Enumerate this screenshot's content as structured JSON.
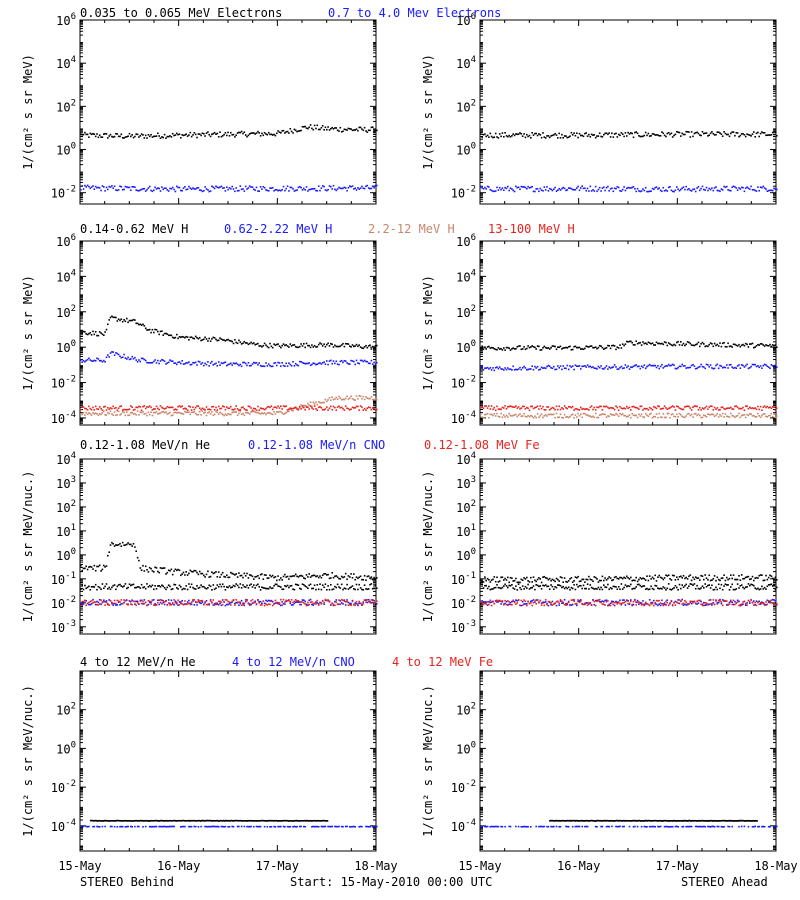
{
  "footer": {
    "left": "STEREO Behind",
    "center": "Start: 15-May-2010 00:00 UTC",
    "right": "STEREO Ahead"
  },
  "colors": {
    "black": "#000000",
    "blue": "#1a1aff",
    "tan": "#c9866b",
    "red": "#e8231d"
  },
  "chart_data": [
    {
      "type": "scatter",
      "row": 0,
      "headers": [
        {
          "text": "0.035 to 0.065 MeV Electrons",
          "color": "#000000"
        },
        {
          "text": "0.7 to 4.0 Mev Electrons",
          "color": "#1a1aff"
        }
      ],
      "ylabel": "1/(cm² s sr MeV)",
      "y_log": true,
      "ylim": [
        0.003,
        1000000
      ],
      "y_ticks": [
        {
          "value": 0.01,
          "mant": "10",
          "exp": "-2"
        },
        {
          "value": 1,
          "mant": "10",
          "exp": "0"
        },
        {
          "value": 100,
          "mant": "10",
          "exp": "2"
        },
        {
          "value": 10000,
          "mant": "10",
          "exp": "4"
        },
        {
          "value": 1000000,
          "mant": "10",
          "exp": "6"
        }
      ],
      "panels": [
        {
          "side": "STEREO Behind",
          "series": [
            {
              "color": "#000000",
              "x": [
                0,
                0.5,
                1,
                1.5,
                2,
                2.3,
                2.5,
                2.8,
                3
              ],
              "y": [
                5,
                4.5,
                5,
                5.5,
                6,
                12,
                10,
                9,
                9
              ]
            },
            {
              "color": "#1a1aff",
              "x": [
                0,
                1,
                2,
                3
              ],
              "y": [
                0.018,
                0.016,
                0.017,
                0.018
              ]
            }
          ]
        },
        {
          "side": "STEREO Ahead",
          "series": [
            {
              "color": "#000000",
              "x": [
                0,
                1,
                2,
                3
              ],
              "y": [
                5,
                5,
                5.5,
                5.5
              ]
            },
            {
              "color": "#1a1aff",
              "x": [
                0,
                1,
                2,
                3
              ],
              "y": [
                0.016,
                0.017,
                0.016,
                0.017
              ]
            }
          ]
        }
      ]
    },
    {
      "type": "scatter",
      "row": 1,
      "headers": [
        {
          "text": "0.14-0.62 MeV H",
          "color": "#000000"
        },
        {
          "text": "0.62-2.22 MeV H",
          "color": "#1a1aff"
        },
        {
          "text": "2.2-12 MeV H",
          "color": "#c9866b"
        },
        {
          "text": "13-100 MeV H",
          "color": "#e8231d"
        }
      ],
      "ylabel": "1/(cm² s sr MeV)",
      "y_log": true,
      "ylim": [
        4e-05,
        1000000
      ],
      "y_ticks": [
        {
          "value": 0.0001,
          "mant": "10",
          "exp": "-4"
        },
        {
          "value": 0.01,
          "mant": "10",
          "exp": "-2"
        },
        {
          "value": 1,
          "mant": "10",
          "exp": "0"
        },
        {
          "value": 100,
          "mant": "10",
          "exp": "2"
        },
        {
          "value": 10000,
          "mant": "10",
          "exp": "4"
        },
        {
          "value": 1000000,
          "mant": "10",
          "exp": "6"
        }
      ],
      "panels": [
        {
          "side": "STEREO Behind",
          "series": [
            {
              "color": "#000000",
              "x": [
                0,
                0.25,
                0.3,
                0.55,
                0.7,
                1,
                1.4,
                1.8,
                2,
                2.5,
                3
              ],
              "y": [
                8,
                6,
                50,
                30,
                10,
                4,
                3,
                1.5,
                1.3,
                1.5,
                1.1
              ]
            },
            {
              "color": "#1a1aff",
              "x": [
                0,
                0.25,
                0.3,
                0.6,
                1,
                1.5,
                2,
                2.5,
                3
              ],
              "y": [
                0.2,
                0.2,
                0.5,
                0.2,
                0.15,
                0.12,
                0.12,
                0.15,
                0.15
              ]
            },
            {
              "color": "#c9866b",
              "x": [
                0,
                1,
                2,
                2.3,
                2.6,
                3
              ],
              "y": [
                0.0002,
                0.0002,
                0.0002,
                0.0006,
                0.0015,
                0.0015
              ]
            },
            {
              "color": "#e8231d",
              "x": [
                0,
                1,
                2,
                3
              ],
              "y": [
                0.0004,
                0.0004,
                0.0004,
                0.0004
              ]
            }
          ]
        },
        {
          "side": "STEREO Ahead",
          "series": [
            {
              "color": "#000000",
              "x": [
                0,
                0.8,
                1.4,
                1.5,
                2,
                3
              ],
              "y": [
                1,
                1,
                1.1,
                2,
                1.7,
                1.3
              ]
            },
            {
              "color": "#1a1aff",
              "x": [
                0,
                1,
                2,
                3
              ],
              "y": [
                0.07,
                0.08,
                0.09,
                0.09
              ]
            },
            {
              "color": "#c9866b",
              "x": [
                0,
                1,
                2,
                3
              ],
              "y": [
                0.00015,
                0.00015,
                0.00015,
                0.00015
              ]
            },
            {
              "color": "#e8231d",
              "x": [
                0,
                1,
                2,
                3
              ],
              "y": [
                0.0004,
                0.0004,
                0.0004,
                0.0004
              ]
            }
          ]
        }
      ]
    },
    {
      "type": "scatter",
      "row": 2,
      "headers": [
        {
          "text": "0.12-1.08 MeV/n He",
          "color": "#000000"
        },
        {
          "text": "0.12-1.08 MeV/n CNO",
          "color": "#1a1aff"
        },
        {
          "text": "0.12-1.08 MeV Fe",
          "color": "#e8231d"
        }
      ],
      "ylabel": "1/(cm² s sr MeV/nuc.)",
      "y_log": true,
      "ylim": [
        0.0005,
        10000
      ],
      "y_ticks": [
        {
          "value": 0.001,
          "mant": "10",
          "exp": "-3"
        },
        {
          "value": 0.01,
          "mant": "10",
          "exp": "-2"
        },
        {
          "value": 0.1,
          "mant": "10",
          "exp": "-1"
        },
        {
          "value": 1,
          "mant": "10",
          "exp": "0"
        },
        {
          "value": 10,
          "mant": "10",
          "exp": "1"
        },
        {
          "value": 100,
          "mant": "10",
          "exp": "2"
        },
        {
          "value": 1000,
          "mant": "10",
          "exp": "3"
        },
        {
          "value": 10000,
          "mant": "10",
          "exp": "4"
        }
      ],
      "panels": [
        {
          "side": "STEREO Behind",
          "series": [
            {
              "color": "#000000",
              "x": [
                0,
                0.25,
                0.3,
                0.55,
                0.6,
                1,
                1.5,
                2,
                2.5,
                3
              ],
              "y": [
                0.3,
                0.3,
                3,
                3,
                0.3,
                0.2,
                0.15,
                0.12,
                0.15,
                0.12
              ]
            },
            {
              "color": "#000000",
              "x": [
                0,
                3
              ],
              "y": [
                0.05,
                0.05
              ]
            },
            {
              "color": "#1a1aff",
              "x": [
                0,
                3
              ],
              "y": [
                0.011,
                0.011
              ]
            },
            {
              "color": "#e8231d",
              "x": [
                0,
                3
              ],
              "y": [
                0.011,
                0.011
              ]
            }
          ]
        },
        {
          "side": "STEREO Ahead",
          "series": [
            {
              "color": "#000000",
              "x": [
                0,
                1,
                2,
                3
              ],
              "y": [
                0.1,
                0.1,
                0.12,
                0.12
              ]
            },
            {
              "color": "#000000",
              "x": [
                0,
                3
              ],
              "y": [
                0.05,
                0.05
              ]
            },
            {
              "color": "#1a1aff",
              "x": [
                0,
                3
              ],
              "y": [
                0.011,
                0.011
              ]
            },
            {
              "color": "#e8231d",
              "x": [
                0,
                3
              ],
              "y": [
                0.011,
                0.011
              ]
            }
          ]
        }
      ]
    },
    {
      "type": "scatter",
      "row": 3,
      "headers": [
        {
          "text": "4 to 12 MeV/n He",
          "color": "#000000"
        },
        {
          "text": "4 to 12 MeV/n CNO",
          "color": "#1a1aff"
        },
        {
          "text": "4 to 12 MeV Fe",
          "color": "#e8231d"
        }
      ],
      "ylabel": "1/(cm² s sr MeV/nuc.)",
      "y_log": true,
      "ylim": [
        5e-06,
        10000
      ],
      "y_ticks": [
        {
          "value": 0.0001,
          "mant": "10",
          "exp": "-4"
        },
        {
          "value": 0.01,
          "mant": "10",
          "exp": "-2"
        },
        {
          "value": 1,
          "mant": "10",
          "exp": "0"
        },
        {
          "value": 100,
          "mant": "10",
          "exp": "2"
        }
      ],
      "panels": [
        {
          "side": "STEREO Behind",
          "series": [
            {
              "color": "#1a1aff",
              "x": [
                0,
                3
              ],
              "y": [
                0.0001,
                0.0001
              ]
            },
            {
              "color": "#000000",
              "x": [
                0.1,
                1.2,
                1.9,
                2.5
              ],
              "y": [
                0.0002,
                0.0002,
                0.0002,
                0.0002
              ]
            }
          ]
        },
        {
          "side": "STEREO Ahead",
          "series": [
            {
              "color": "#1a1aff",
              "x": [
                0,
                3
              ],
              "y": [
                0.0001,
                0.0001
              ]
            },
            {
              "color": "#000000",
              "x": [
                0.7,
                1.8,
                2.8
              ],
              "y": [
                0.0002,
                0.0002,
                0.0002
              ]
            }
          ]
        }
      ]
    }
  ],
  "x_axis": {
    "range": [
      "15-May",
      "18-May"
    ],
    "tick_labels": [
      "15-May",
      "16-May",
      "17-May",
      "18-May"
    ]
  }
}
